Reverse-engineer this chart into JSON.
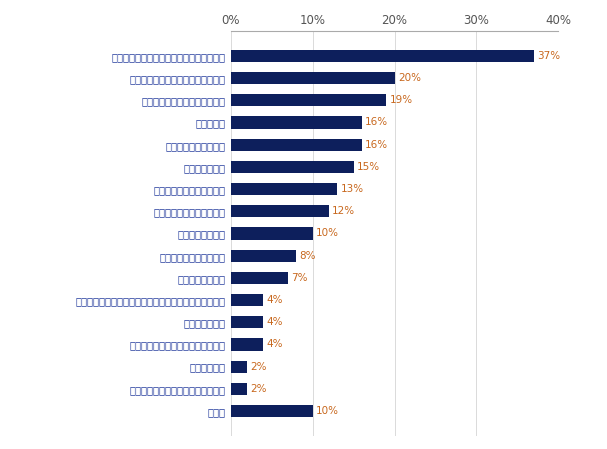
{
  "categories": [
    "上司と部下のコミュニケーションが少ない",
    "失敗が許されない（許容度が低い）",
    "他部署や外部との交流が少ない",
    "残業が多い",
    "特に特徴や側向はない",
    "休みが取り辞い",
    "様々な年代の従業員がいる",
    "従業員の年代に偏りがある",
    "従業員数が少ない",
    "従業員同士が干渉しない",
    "業績が低下、低調",
    "正社員・非正社員など様々な立場の従業員が側いている",
    "従業員数が多い",
    "中途入社や外国人など従業員が多様",
    "競争が激しい",
    "評価と業績との連動が徹底している",
    "その他"
  ],
  "values": [
    37,
    20,
    19,
    16,
    16,
    15,
    13,
    12,
    10,
    8,
    7,
    4,
    4,
    4,
    2,
    2,
    10
  ],
  "bar_color": "#0d1f5c",
  "label_color": "#1a3399",
  "value_color": "#c8681e",
  "background_color": "#ffffff",
  "xlim": [
    0,
    40
  ],
  "xticks": [
    0,
    10,
    20,
    30,
    40
  ],
  "xtick_labels": [
    "0%",
    "10%",
    "20%",
    "30%",
    "40%"
  ],
  "bar_height": 0.55,
  "figsize": [
    6.07,
    4.49
  ],
  "dpi": 100,
  "label_fontsize": 7.2,
  "tick_fontsize": 8.5,
  "value_fontsize": 7.5
}
